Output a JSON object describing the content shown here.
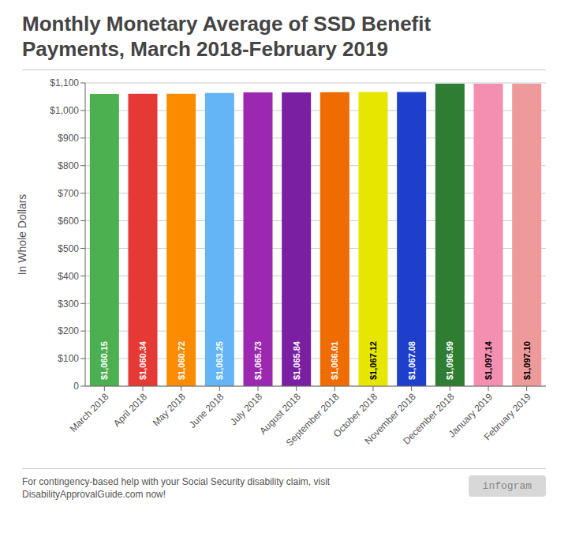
{
  "chart_data": {
    "type": "bar",
    "title": "Monthly Monetary Average of SSD Benefit\nPayments, March 2018-February 2019",
    "ylabel": "In Whole Dollars",
    "categories": [
      "March 2018",
      "April 2018",
      "May 2018",
      "June 2018",
      "July 2018",
      "August 2018",
      "September 2018",
      "October 2018",
      "November 2018",
      "December 2018",
      "January 2019",
      "February 2019"
    ],
    "values": [
      1060.15,
      1060.34,
      1060.72,
      1063.25,
      1065.73,
      1065.84,
      1066.01,
      1067.12,
      1067.08,
      1096.99,
      1097.14,
      1097.1
    ],
    "value_labels": [
      "$1,060.15",
      "$1,060.34",
      "$1,060.72",
      "$1,063.25",
      "$1,065.73",
      "$1,065.84",
      "$1,066.01",
      "$1,067.12",
      "$1,067.08",
      "$1,096.99",
      "$1,097.14",
      "$1,097.10"
    ],
    "data_labels": true,
    "colors": [
      "#4caf50",
      "#e53935",
      "#fb8c00",
      "#64b5f6",
      "#9c27b0",
      "#7b1fa2",
      "#ef6c00",
      "#e6e600",
      "#1e3fcc",
      "#2e7d32",
      "#f48fb1",
      "#ef9a9a"
    ],
    "ylim": [
      0,
      1100
    ],
    "yticks": [
      0,
      {
        "value": 100,
        "label": "$100"
      },
      {
        "value": 200,
        "label": "$200"
      },
      {
        "value": 300,
        "label": "$300"
      },
      {
        "value": 400,
        "label": "$400"
      },
      {
        "value": 500,
        "label": "$500"
      },
      {
        "value": 600,
        "label": "$600"
      },
      {
        "value": 700,
        "label": "$700"
      },
      {
        "value": 800,
        "label": "$800"
      },
      {
        "value": 900,
        "label": "$900"
      },
      {
        "value": 1000,
        "label": "$1,000"
      },
      {
        "value": 1100,
        "label": "$1,100"
      }
    ],
    "grid": true,
    "annotations": [
      "For contingency-based help with your Social Security disability claim, visit DisabilityApprovalGuide.com now!",
      "infogram"
    ]
  }
}
